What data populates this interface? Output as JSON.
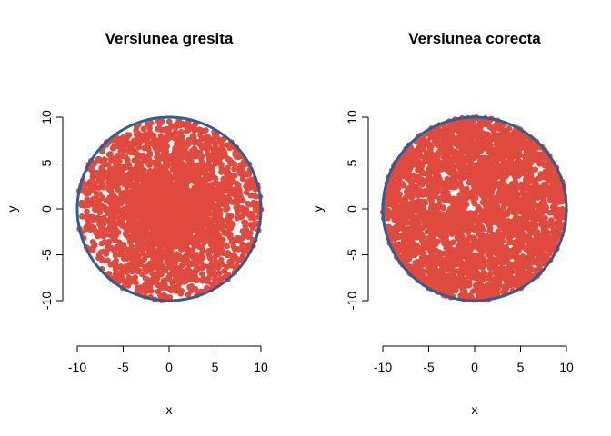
{
  "chart_data": [
    {
      "type": "scatter",
      "title": "Versiunea gresita",
      "xlabel": "x",
      "ylabel": "y",
      "xlim": [
        -10,
        10
      ],
      "ylim": [
        -10,
        10
      ],
      "x_ticks": [
        -10,
        -5,
        0,
        5,
        10
      ],
      "y_ticks": [
        -10,
        -5,
        0,
        5,
        10
      ],
      "radius": 10,
      "n_points": 3000,
      "sampling": "uniform radius (concentrated near center)",
      "point_color": "#e04a3f",
      "circle_color": "#2f5f8f",
      "grid": false,
      "legend": "none"
    },
    {
      "type": "scatter",
      "title": "Versiunea corecta",
      "xlabel": "x",
      "ylabel": "y",
      "xlim": [
        -10,
        10
      ],
      "ylim": [
        -10,
        10
      ],
      "x_ticks": [
        -10,
        -5,
        0,
        5,
        10
      ],
      "y_ticks": [
        -10,
        -5,
        0,
        5,
        10
      ],
      "radius": 10,
      "n_points": 3000,
      "sampling": "sqrt radius (uniform over disc)",
      "point_color": "#e04a3f",
      "circle_color": "#2f5f8f",
      "grid": false,
      "legend": "none"
    }
  ]
}
